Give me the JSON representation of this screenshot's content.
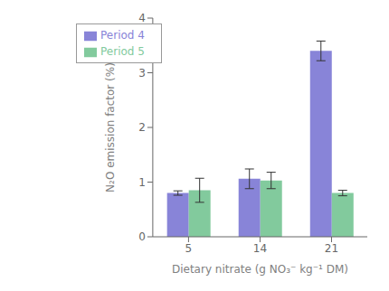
{
  "chart_data": {
    "type": "bar",
    "x_label": "Dietary nitrate (g NO₃⁻ kg⁻¹ DM)",
    "y_label": "N₂O emission factor (%)",
    "categories": [
      "5",
      "14",
      "21"
    ],
    "series": [
      {
        "name": "Period 4",
        "color": "#8884d8",
        "values": [
          0.8,
          1.06,
          3.4
        ],
        "errors": [
          0.04,
          0.18,
          0.18
        ]
      },
      {
        "name": "Period 5",
        "color": "#82ca9d",
        "values": [
          0.85,
          1.03,
          0.8
        ],
        "errors": [
          0.22,
          0.15,
          0.05
        ]
      }
    ],
    "ylim": [
      0,
      4
    ],
    "yticks": [
      0,
      1,
      2,
      3,
      4
    ],
    "grid": false,
    "legend": "upper left"
  }
}
